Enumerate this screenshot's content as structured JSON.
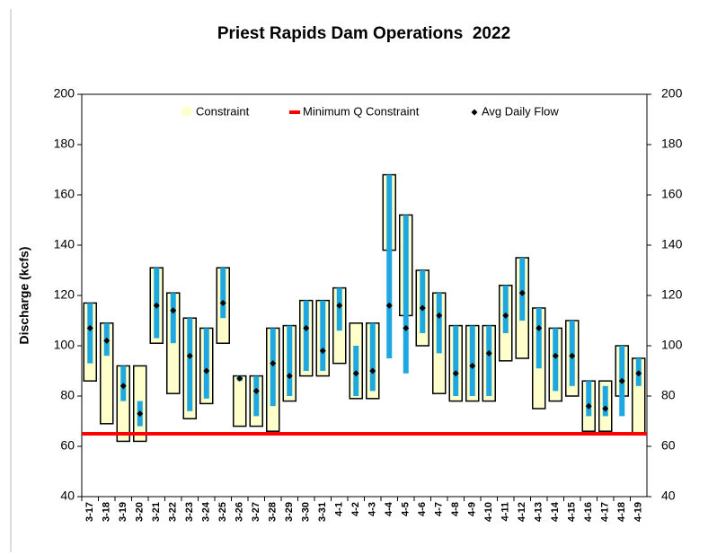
{
  "chart_data": {
    "type": "range-box",
    "title": "Priest Rapids Dam Operations  2022",
    "ylabel": "Discharge (kcfs)",
    "categories": [
      "3-17",
      "3-18",
      "3-19",
      "3-20",
      "3-21",
      "3-22",
      "3-23",
      "3-24",
      "3-25",
      "3-26",
      "3-27",
      "3-28",
      "3-29",
      "3-30",
      "3-31",
      "4-1",
      "4-2",
      "4-3",
      "4-4",
      "4-5",
      "4-6",
      "4-7",
      "4-8",
      "4-9",
      "4-10",
      "4-11",
      "4-12",
      "4-13",
      "4-14",
      "4-15",
      "4-16",
      "4-17",
      "4-18",
      "4-19"
    ],
    "constraint": {
      "name": "Constraint",
      "color": "#ffffcc",
      "low": [
        86,
        69,
        62,
        62,
        101,
        81,
        71,
        77,
        101,
        68,
        68,
        66,
        78,
        88,
        88,
        93,
        79,
        79,
        138,
        112,
        100,
        81,
        78,
        78,
        78,
        94,
        95,
        75,
        78,
        80,
        66,
        66,
        80,
        65
      ],
      "high": [
        117,
        109,
        92,
        92,
        131,
        121,
        111,
        107,
        131,
        88,
        88,
        107,
        108,
        118,
        118,
        123,
        109,
        109,
        168,
        152,
        130,
        121,
        108,
        108,
        108,
        124,
        135,
        115,
        107,
        110,
        86,
        86,
        100,
        95
      ]
    },
    "flow_range": {
      "color": "#1ea7e1",
      "low": [
        93,
        96,
        78,
        68,
        103,
        101,
        74,
        79,
        111,
        86,
        72,
        76,
        80,
        90,
        90,
        106,
        80,
        82,
        95,
        89,
        105,
        97,
        80,
        80,
        80,
        105,
        110,
        91,
        82,
        84,
        72,
        72,
        72,
        84
      ],
      "high": [
        117,
        109,
        92,
        78,
        131,
        121,
        111,
        107,
        131,
        88,
        88,
        107,
        108,
        118,
        118,
        123,
        100,
        109,
        168,
        152,
        130,
        121,
        108,
        108,
        108,
        124,
        135,
        115,
        107,
        110,
        86,
        84,
        100,
        95
      ]
    },
    "avg": {
      "name": "Avg Daily Flow",
      "color": "#000000",
      "values": [
        107,
        102,
        84,
        73,
        116,
        114,
        96,
        90,
        117,
        87,
        82,
        93,
        88,
        107,
        98,
        116,
        89,
        90,
        116,
        107,
        115,
        112,
        89,
        92,
        97,
        112,
        121,
        107,
        96,
        96,
        76,
        75,
        86,
        89
      ]
    },
    "min_q": {
      "name": "Minimum Q Constraint",
      "value": 65,
      "color": "#ff0000"
    },
    "ylim": [
      40,
      200
    ],
    "yticks": [
      40,
      60,
      80,
      100,
      120,
      140,
      160,
      180,
      200
    ],
    "y2lim": [
      40,
      200
    ],
    "y2ticks": [
      40,
      60,
      80,
      100,
      120,
      140,
      160,
      180,
      200
    ]
  }
}
